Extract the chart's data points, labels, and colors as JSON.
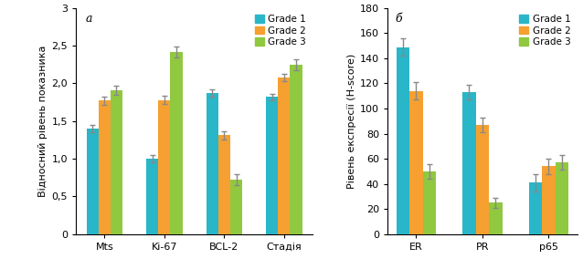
{
  "panel_a": {
    "categories": [
      "Mts",
      "Ki-67",
      "BCL-2",
      "Стадія"
    ],
    "grade1": [
      1.4,
      1.0,
      1.87,
      1.82
    ],
    "grade2": [
      1.77,
      1.78,
      1.31,
      2.08
    ],
    "grade3": [
      1.91,
      2.42,
      0.72,
      2.25
    ],
    "grade1_err": [
      0.05,
      0.05,
      0.05,
      0.04
    ],
    "grade2_err": [
      0.05,
      0.05,
      0.05,
      0.05
    ],
    "grade3_err": [
      0.06,
      0.07,
      0.07,
      0.07
    ],
    "ylabel": "Відносний рівень показника",
    "ylim": [
      0,
      3.0
    ],
    "yticks": [
      0,
      0.5,
      1.0,
      1.5,
      2.0,
      2.5,
      3.0
    ],
    "yticklabels": [
      "0",
      "0,5",
      "1,0",
      "1,5",
      "2,0",
      "2,5",
      "3"
    ],
    "label": "а"
  },
  "panel_b": {
    "categories": [
      "ER",
      "PR",
      "p65"
    ],
    "grade1": [
      149,
      113,
      41
    ],
    "grade2": [
      114,
      87,
      54
    ],
    "grade3": [
      50,
      25,
      57
    ],
    "grade1_err": [
      7,
      6,
      7
    ],
    "grade2_err": [
      7,
      6,
      6
    ],
    "grade3_err": [
      6,
      4,
      6
    ],
    "ylabel": "Рівень експресії (H-score)",
    "ylim": [
      0,
      180
    ],
    "yticks": [
      0,
      20,
      40,
      60,
      80,
      100,
      120,
      140,
      160,
      180
    ],
    "yticklabels": [
      "0",
      "20",
      "40",
      "60",
      "80",
      "100",
      "120",
      "140",
      "160",
      "180"
    ],
    "label": "б"
  },
  "colors": {
    "grade1": "#29B6C8",
    "grade2": "#F5A030",
    "grade3": "#90C840"
  },
  "legend_labels": [
    "Grade 1",
    "Grade 2",
    "Grade 3"
  ],
  "bar_width": 0.2,
  "error_color": "#888888",
  "error_capsize": 2.5,
  "figsize": [
    6.38,
    2.95
  ],
  "dpi": 100,
  "background_color": "#ffffff"
}
